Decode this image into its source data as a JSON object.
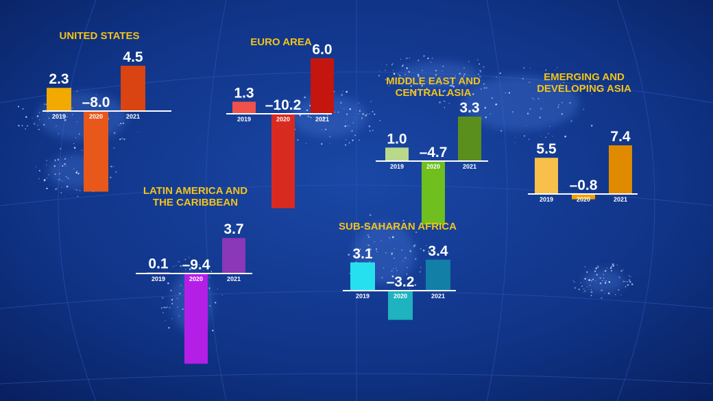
{
  "chart_data": [
    {
      "type": "bar",
      "title_lines": [
        "UNITED STATES"
      ],
      "categories": [
        "2019",
        "2020",
        "2021"
      ],
      "values": [
        2.3,
        -8.0,
        4.5
      ],
      "value_labels": [
        "2.3",
        "–8.0",
        "4.5"
      ],
      "colors": [
        "#f2a900",
        "#e8581b",
        "#d94412"
      ]
    },
    {
      "type": "bar",
      "title_lines": [
        "EURO AREA"
      ],
      "categories": [
        "2019",
        "2020",
        "2021"
      ],
      "values": [
        1.3,
        -10.2,
        6.0
      ],
      "value_labels": [
        "1.3",
        "–10.2",
        "6.0"
      ],
      "colors": [
        "#f0524a",
        "#d92a1f",
        "#c4150f"
      ]
    },
    {
      "type": "bar",
      "title_lines": [
        "MIDDLE EAST AND",
        "CENTRAL ASIA"
      ],
      "categories": [
        "2019",
        "2020",
        "2021"
      ],
      "values": [
        1.0,
        -4.7,
        3.3
      ],
      "value_labels": [
        "1.0",
        "–4.7",
        "3.3"
      ],
      "colors": [
        "#b9d98a",
        "#6fbf1f",
        "#5a8f1e"
      ]
    },
    {
      "type": "bar",
      "title_lines": [
        "EMERGING AND",
        "DEVELOPING ASIA"
      ],
      "categories": [
        "2019",
        "2020",
        "2021"
      ],
      "values": [
        5.5,
        -0.8,
        7.4
      ],
      "value_labels": [
        "5.5",
        "–0.8",
        "7.4"
      ],
      "colors": [
        "#f8c04a",
        "#f2a100",
        "#e08a00"
      ]
    },
    {
      "type": "bar",
      "title_lines": [
        "LATIN AMERICA AND",
        "THE CARIBBEAN"
      ],
      "categories": [
        "2019",
        "2020",
        "2021"
      ],
      "values": [
        0.1,
        -9.4,
        3.7
      ],
      "value_labels": [
        "0.1",
        "–9.4",
        "3.7"
      ],
      "colors": [
        "#e59aff",
        "#b41fe8",
        "#8a37b8"
      ]
    },
    {
      "type": "bar",
      "title_lines": [
        "SUB-SAHARAN AFRICA"
      ],
      "categories": [
        "2019",
        "2020",
        "2021"
      ],
      "values": [
        3.1,
        -3.2,
        3.4
      ],
      "value_labels": [
        "3.1",
        "–3.2",
        "3.4"
      ],
      "colors": [
        "#27e0ef",
        "#1fb3bf",
        "#127fa6"
      ]
    }
  ]
}
